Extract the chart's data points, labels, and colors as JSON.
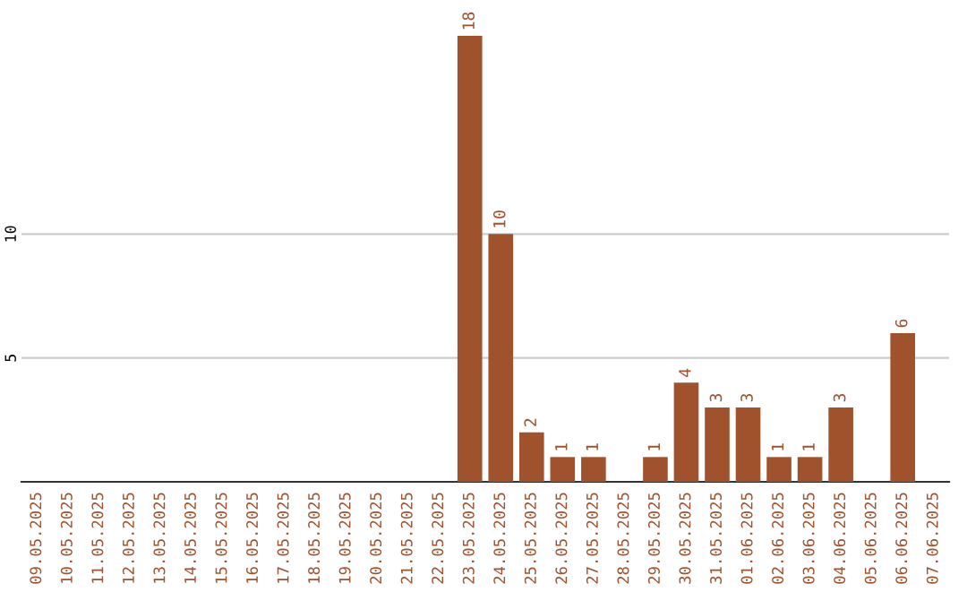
{
  "chart_data": {
    "type": "bar",
    "categories": [
      "09.05.2025",
      "10.05.2025",
      "11.05.2025",
      "12.05.2025",
      "13.05.2025",
      "14.05.2025",
      "15.05.2025",
      "16.05.2025",
      "17.05.2025",
      "18.05.2025",
      "19.05.2025",
      "20.05.2025",
      "21.05.2025",
      "22.05.2025",
      "23.05.2025",
      "24.05.2025",
      "25.05.2025",
      "26.05.2025",
      "27.05.2025",
      "28.05.2025",
      "29.05.2025",
      "30.05.2025",
      "31.05.2025",
      "01.06.2025",
      "02.06.2025",
      "03.06.2025",
      "04.06.2025",
      "05.06.2025",
      "06.06.2025",
      "07.06.2025"
    ],
    "values": [
      0,
      0,
      0,
      0,
      0,
      0,
      0,
      0,
      0,
      0,
      0,
      0,
      0,
      0,
      18,
      10,
      2,
      1,
      1,
      0,
      1,
      4,
      3,
      3,
      1,
      1,
      3,
      0,
      6,
      0
    ],
    "value_labels": [
      null,
      null,
      null,
      null,
      null,
      null,
      null,
      null,
      null,
      null,
      null,
      null,
      null,
      null,
      "18",
      "10",
      "2",
      "1",
      "1",
      null,
      "1",
      "4",
      "3",
      "3",
      "1",
      "1",
      "3",
      null,
      "6",
      null
    ],
    "color": "#a0522d",
    "ylim": [
      0,
      18
    ],
    "yticks": [
      5,
      10
    ],
    "grid": "y"
  }
}
